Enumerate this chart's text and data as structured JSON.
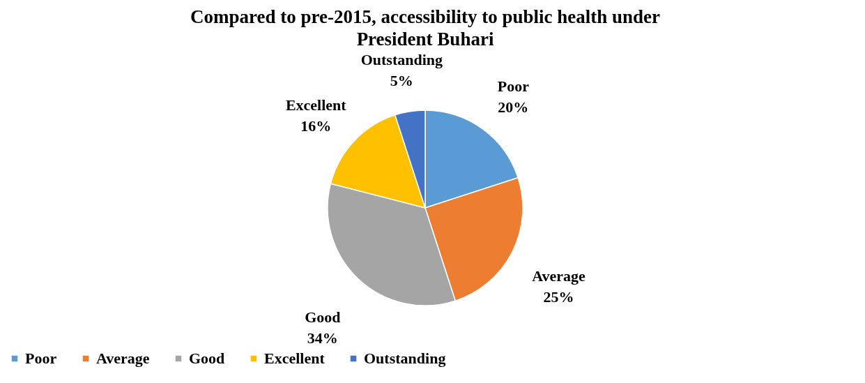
{
  "chart_data": {
    "type": "pie",
    "title": "Compared to pre-2015, accessibility to public health under President Buhari",
    "categories": [
      "Poor",
      "Average",
      "Good",
      "Excellent",
      "Outstanding"
    ],
    "values": [
      20,
      25,
      34,
      16,
      5
    ],
    "colors": [
      "#5b9bd5",
      "#ed7d31",
      "#a5a5a5",
      "#ffc000",
      "#4472c4"
    ],
    "value_labels": [
      "20%",
      "25%",
      "34%",
      "16%",
      "5%"
    ],
    "legend": "bottom"
  }
}
